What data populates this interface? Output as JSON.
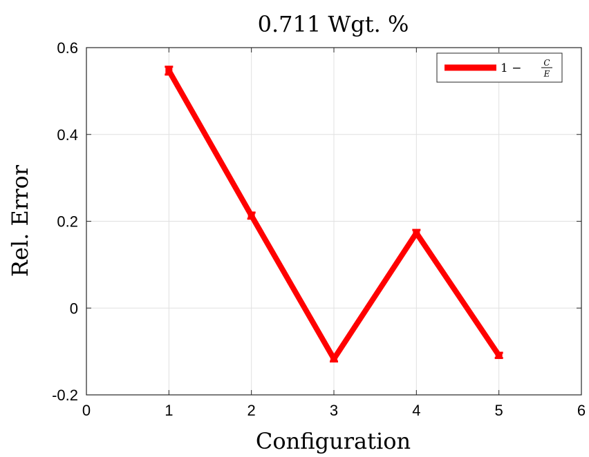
{
  "chart_data": {
    "type": "line",
    "title": "0.711 Wgt. %",
    "xlabel": "Configuration",
    "ylabel": "Rel. Error",
    "xlim": [
      0,
      6
    ],
    "ylim": [
      -0.2,
      0.6
    ],
    "xticks": [
      0,
      1,
      2,
      3,
      4,
      5,
      6
    ],
    "yticks": [
      -0.2,
      0,
      0.2,
      0.4,
      0.6
    ],
    "xtick_labels": [
      "0",
      "1",
      "2",
      "3",
      "4",
      "5",
      "6"
    ],
    "ytick_labels": [
      "-0.2",
      "0",
      "0.2",
      "0.4",
      "0.6"
    ],
    "grid": true,
    "legend_position": "top-right",
    "series": [
      {
        "name": "1 − C/E",
        "color": "#ff0000",
        "x": [
          1,
          2,
          3,
          4,
          5
        ],
        "y": [
          0.547,
          0.213,
          -0.117,
          0.173,
          -0.109
        ],
        "err": [
          0.009,
          0.007,
          0.006,
          0.007,
          0.006
        ]
      }
    ]
  },
  "legend": {
    "prefix": "1 −",
    "numerator": "C",
    "denominator": "E"
  }
}
